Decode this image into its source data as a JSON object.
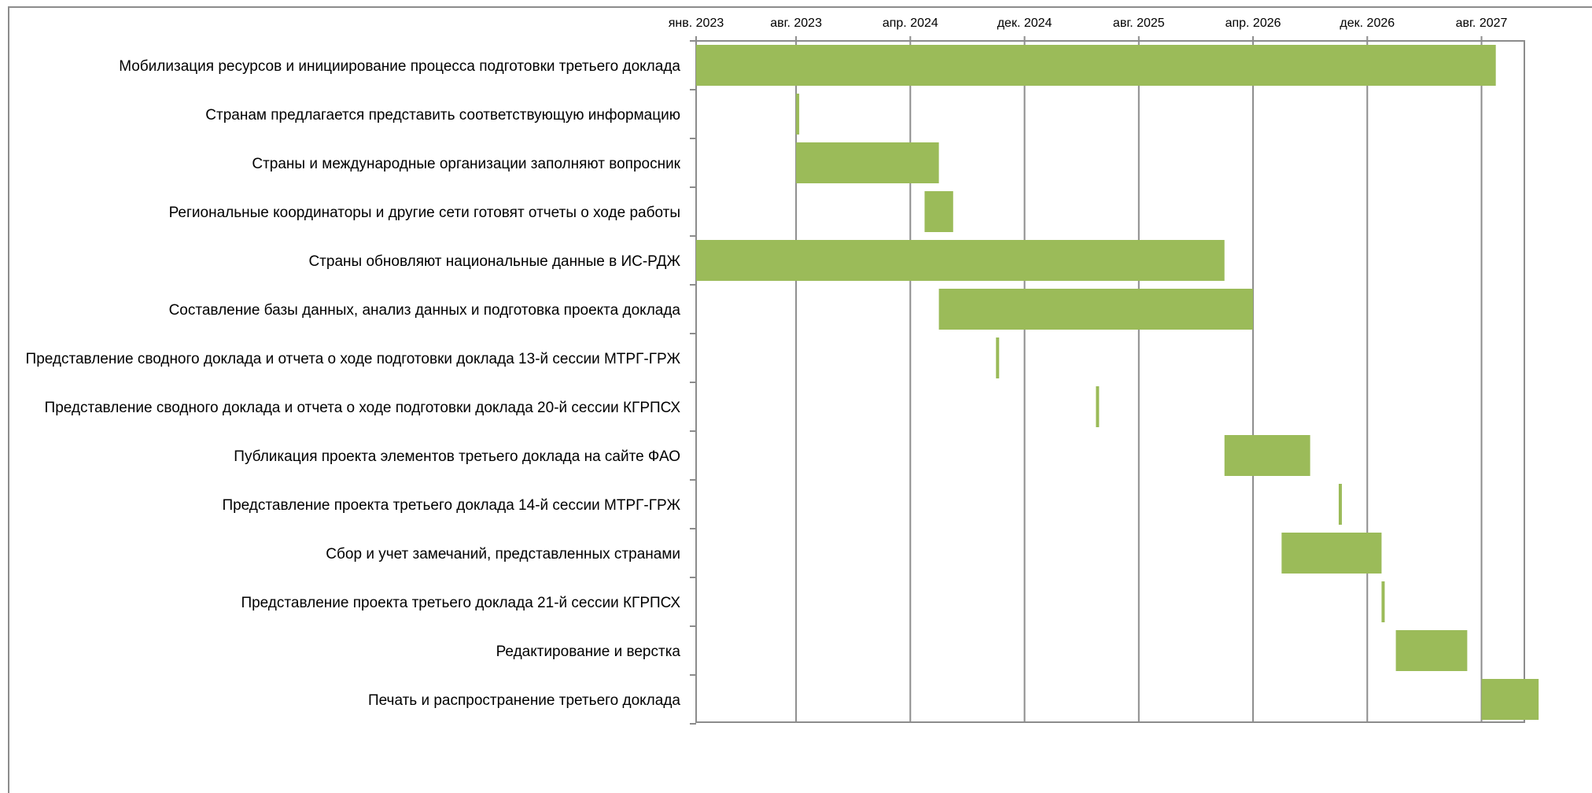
{
  "chart_data": {
    "type": "bar",
    "subtype": "gantt",
    "title": "",
    "xlabel": "",
    "ylabel": "",
    "x_axis": "date",
    "x_axis_position": "top",
    "grid": true,
    "legend": "none",
    "bar_color": "#9bbb59",
    "grid_color": "#8c8c8c",
    "xlim": [
      "2023-01",
      "2027-11"
    ],
    "ticks": [
      {
        "date": "2023-01",
        "label": "янв. 2023"
      },
      {
        "date": "2023-08",
        "label": "авг. 2023"
      },
      {
        "date": "2024-04",
        "label": "апр. 2024"
      },
      {
        "date": "2024-12",
        "label": "дек. 2024"
      },
      {
        "date": "2025-08",
        "label": "авг. 2025"
      },
      {
        "date": "2026-04",
        "label": "апр. 2026"
      },
      {
        "date": "2026-12",
        "label": "дек. 2026"
      },
      {
        "date": "2027-08",
        "label": "авг. 2027"
      }
    ],
    "tasks": [
      {
        "label": "Мобилизация ресурсов и инициирование процесса подготовки третьего доклада",
        "start": "2023-01",
        "end": "2027-09"
      },
      {
        "label": "Странам предлагается представить соответствующую информацию",
        "start": "2023-08",
        "end": "2023-08"
      },
      {
        "label": "Страны и международные организации заполняют вопросник",
        "start": "2023-08",
        "end": "2024-06"
      },
      {
        "label": "Региональные координаторы и другие сети готовят отчеты о ходе работы",
        "start": "2024-05",
        "end": "2024-07"
      },
      {
        "label": "Страны обновляют национальные данные в ИС-РДЖ",
        "start": "2023-01",
        "end": "2026-02"
      },
      {
        "label": "Составление базы данных, анализ данных и подготовка проекта доклада",
        "start": "2024-06",
        "end": "2026-04"
      },
      {
        "label": "Представление сводного доклада и отчета о ходе подготовки доклада 13-й сессии МТРГ-ГРЖ",
        "start": "2024-10",
        "end": "2024-10"
      },
      {
        "label": "Представление сводного доклада и отчета о ходе подготовки доклада 20-й сессии КГРПСХ",
        "start": "2025-05",
        "end": "2025-05"
      },
      {
        "label": "Публикация проекта элементов третьего доклада на сайте ФАО",
        "start": "2026-02",
        "end": "2026-08"
      },
      {
        "label": "Представление проекта третьего доклада 14-й сессии МТРГ-ГРЖ",
        "start": "2026-10",
        "end": "2026-10"
      },
      {
        "label": "Сбор и учет замечаний, представленных странами",
        "start": "2026-06",
        "end": "2027-01"
      },
      {
        "label": "Представление проекта третьего доклада 21-й сессии КГРПСХ",
        "start": "2027-01",
        "end": "2027-01"
      },
      {
        "label": "Редактирование и верстка",
        "start": "2027-02",
        "end": "2027-07"
      },
      {
        "label": "Печать и распространение третьего доклада",
        "start": "2027-08",
        "end": "2027-12"
      }
    ]
  }
}
